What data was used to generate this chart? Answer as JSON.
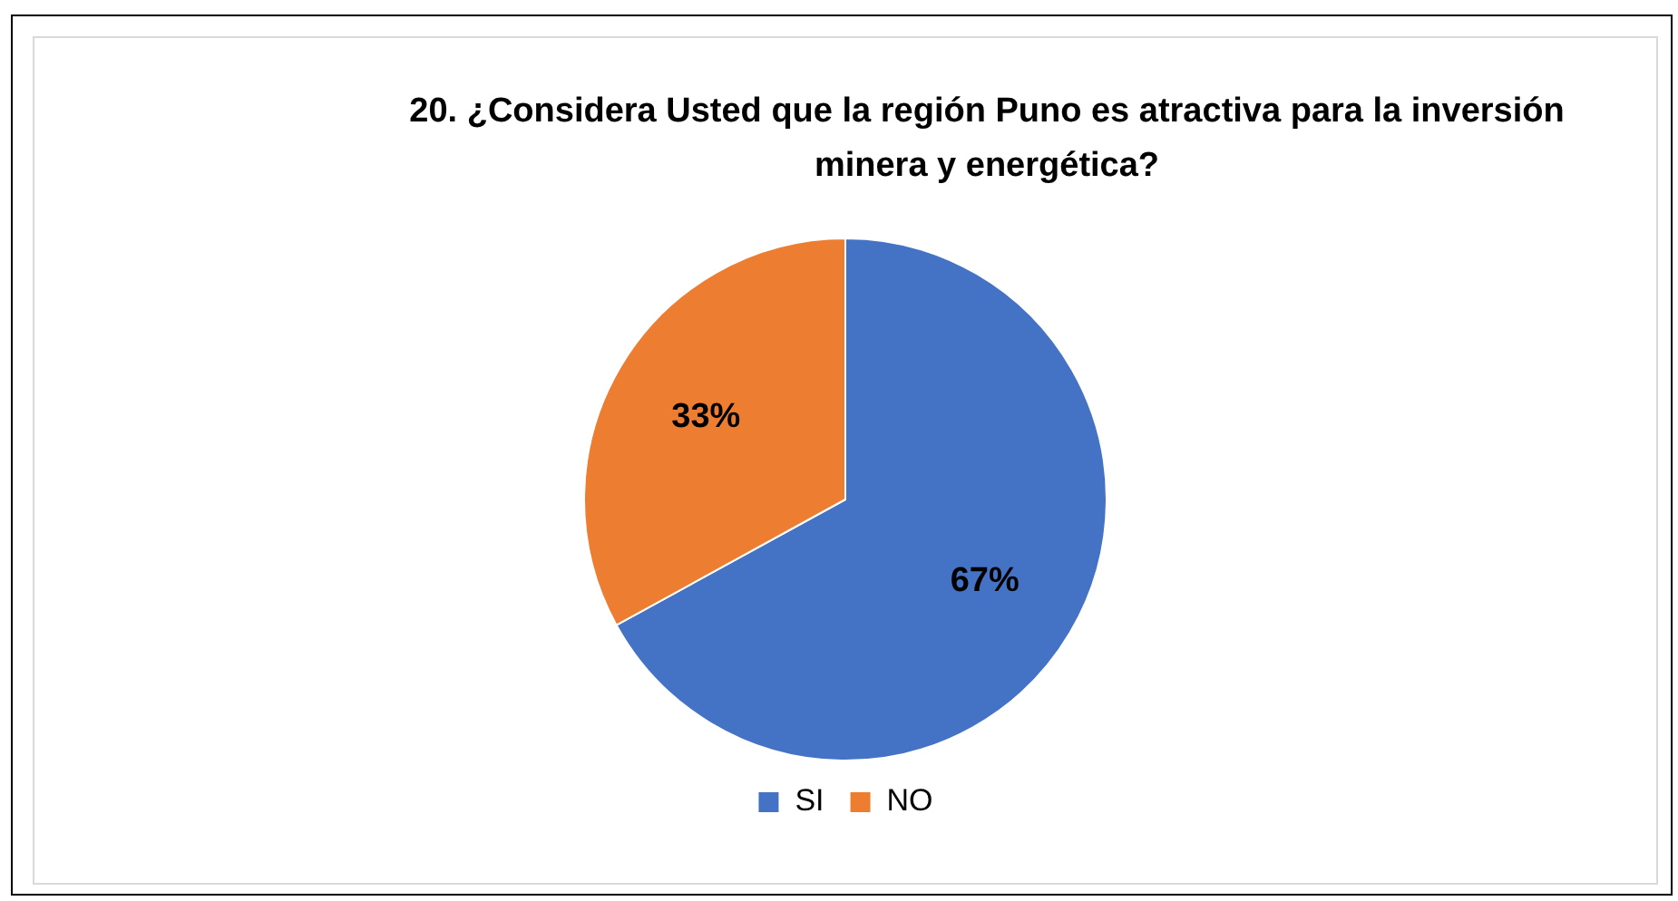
{
  "chart_data": {
    "type": "pie",
    "title": "20. ¿Considera Usted que la región Puno es atractiva para la inversión minera y energética?",
    "categories": [
      "SI",
      "NO"
    ],
    "values": [
      67,
      33
    ],
    "colors": [
      "#4472c4",
      "#ed7d31"
    ],
    "value_labels": [
      "67%",
      "33%"
    ],
    "legend": "bottom"
  }
}
